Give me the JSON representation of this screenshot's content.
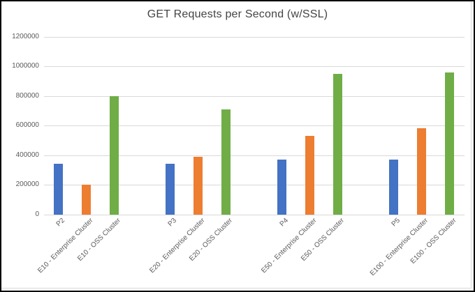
{
  "chart_data": {
    "type": "bar",
    "title": "GET Requests per Second (w/SSL)",
    "categories": [
      "P2",
      "E10 - Enterprise Cluster",
      "E10 - OSS Cluster",
      "P3",
      "E20 - Enterprise Cluster",
      "E20 - OSS Cluster",
      "P4",
      "E50 - Enterprise Cluster",
      "E50 - OSS Cluster",
      "P5",
      "E100 - Enterprise Cluster",
      "E100 - OSS Cluster"
    ],
    "values": [
      340000,
      200000,
      800000,
      340000,
      390000,
      710000,
      370000,
      530000,
      950000,
      370000,
      580000,
      960000
    ],
    "group_size": 3,
    "series_palette": [
      "#4472C4",
      "#ED7D31",
      "#70AD47"
    ],
    "xlabel": "",
    "ylabel": "",
    "ylim": [
      0,
      1200000
    ],
    "yticks": [
      0,
      200000,
      400000,
      600000,
      800000,
      1000000,
      1200000
    ],
    "ytick_labels": [
      "0",
      "200000",
      "400000",
      "600000",
      "800000",
      "1000000",
      "1200000"
    ],
    "grid": true,
    "legend_position": "none",
    "x_label_rotation_deg": 45
  },
  "colors": {
    "background": "#FFFFFF",
    "outer_border": "#000000",
    "gridline": "#D9D9D9",
    "axis_line": "#D9D9D9",
    "axis_text": "#595959",
    "title_text": "#444444",
    "object_frame": "#D9D9D9"
  }
}
